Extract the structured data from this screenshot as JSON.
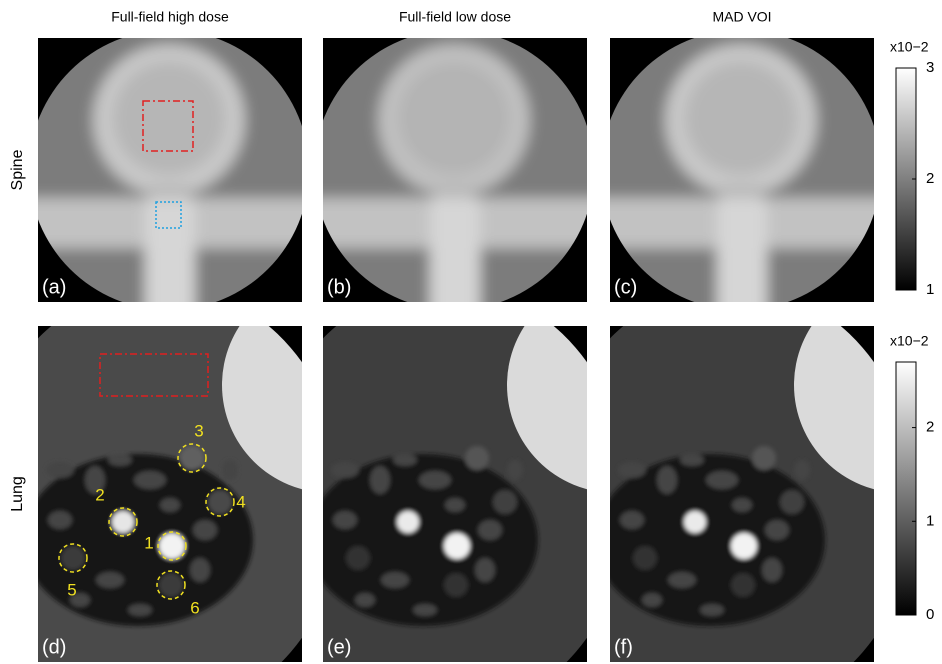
{
  "columns": [
    "Full-field high dose",
    "Full-field low dose",
    "MAD VOI"
  ],
  "rows": [
    {
      "label": "Spine",
      "panels": [
        "(a)",
        "(b)",
        "(c)"
      ],
      "colorbar": {
        "multiplier": "x10−2",
        "lim": [
          1,
          3
        ],
        "ticks": [
          1,
          2,
          3
        ]
      }
    },
    {
      "label": "Lung",
      "panels": [
        "(d)",
        "(e)",
        "(f)"
      ],
      "colorbar": {
        "multiplier": "x10−2",
        "lim": [
          0,
          2.7
        ],
        "ticks": [
          0,
          1,
          2
        ]
      }
    }
  ],
  "rois": [
    "1",
    "2",
    "3",
    "4",
    "5",
    "6"
  ]
}
